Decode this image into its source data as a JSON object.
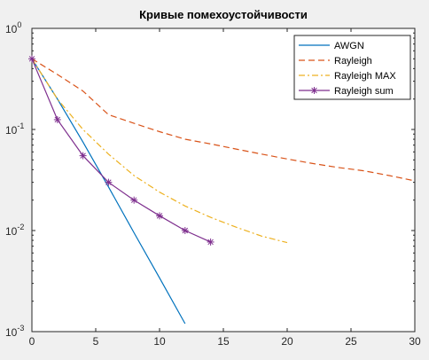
{
  "chart_data": {
    "type": "line",
    "title": "Кривые помехоустойчивости",
    "xlabel": "",
    "ylabel": "",
    "xlim": [
      0,
      30
    ],
    "ylim": [
      0.001,
      1
    ],
    "yscale": "log",
    "grid": false,
    "legend_position": "top-right",
    "x_ticks": [
      0,
      5,
      10,
      15,
      20,
      25,
      30
    ],
    "x_tick_labels": [
      "0",
      "5",
      "10",
      "15",
      "20",
      "25",
      "30"
    ],
    "y_ticks": [
      1,
      0.1,
      0.01,
      0.001
    ],
    "y_tick_labels": [
      {
        "base": "10",
        "exp": "0"
      },
      {
        "base": "10",
        "exp": "-1"
      },
      {
        "base": "10",
        "exp": "-2"
      },
      {
        "base": "10",
        "exp": "-3"
      }
    ],
    "series": [
      {
        "name": "AWGN",
        "color": "#0072bd",
        "style": "solid",
        "marker": "none",
        "x": [
          0,
          2,
          4,
          6,
          8,
          10,
          12
        ],
        "y": [
          0.5,
          0.2,
          0.075,
          0.027,
          0.0095,
          0.0034,
          0.0012
        ]
      },
      {
        "name": "Rayleigh",
        "color": "#d95319",
        "style": "dashed",
        "marker": "none",
        "x": [
          0,
          2,
          4,
          6,
          8,
          10,
          12,
          14,
          16,
          18,
          20,
          22,
          24,
          26,
          28,
          30
        ],
        "y": [
          0.5,
          0.35,
          0.24,
          0.14,
          0.115,
          0.095,
          0.08,
          0.072,
          0.064,
          0.057,
          0.051,
          0.046,
          0.042,
          0.039,
          0.035,
          0.031
        ]
      },
      {
        "name": "Rayleigh MAX",
        "color": "#edb120",
        "style": "dashdot",
        "marker": "none",
        "x": [
          0,
          2,
          4,
          6,
          8,
          10,
          12,
          14,
          16,
          18,
          20
        ],
        "y": [
          0.5,
          0.2,
          0.1,
          0.057,
          0.035,
          0.024,
          0.0175,
          0.0135,
          0.0108,
          0.0088,
          0.0076
        ]
      },
      {
        "name": "Rayleigh sum",
        "color": "#7e2f8e",
        "style": "solid",
        "marker": "asterisk",
        "x": [
          0,
          2,
          4,
          6,
          8,
          10,
          12,
          14
        ],
        "y": [
          0.5,
          0.125,
          0.055,
          0.03,
          0.02,
          0.014,
          0.01,
          0.0077
        ]
      }
    ]
  }
}
